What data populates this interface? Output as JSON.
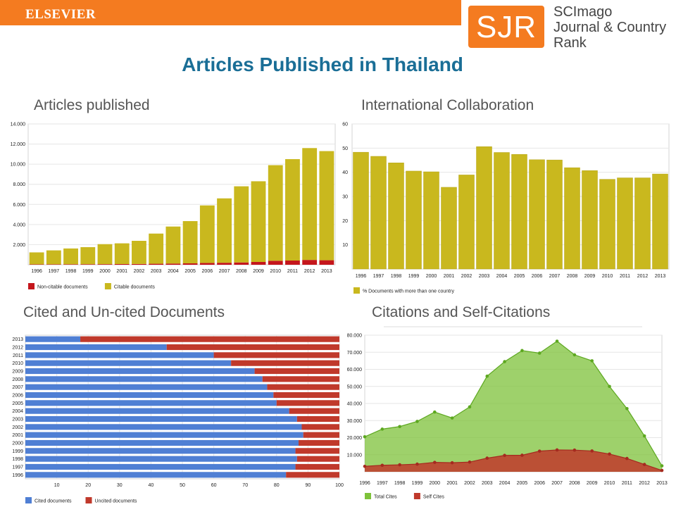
{
  "header": {
    "publisher": "ELSEVIER",
    "logo_letters": "SJR",
    "logo_line1": "SCImago",
    "logo_line2": "Journal & Country",
    "logo_line3": "Rank",
    "title": "Articles Published in Thailand",
    "brand_color": "#f47b20",
    "title_color": "#1a6e96"
  },
  "chart_data": [
    {
      "id": "articles",
      "type": "bar",
      "stacked": true,
      "title": "Articles published",
      "categories": [
        "1996",
        "1997",
        "1998",
        "1999",
        "2000",
        "2001",
        "2002",
        "2003",
        "2004",
        "2005",
        "2006",
        "2007",
        "2008",
        "2009",
        "2010",
        "2011",
        "2012",
        "2013"
      ],
      "series": [
        {
          "name": "Non-citable documents",
          "color": "#c4161c",
          "values": [
            40,
            45,
            50,
            55,
            60,
            70,
            80,
            100,
            120,
            140,
            180,
            200,
            230,
            280,
            400,
            420,
            480,
            450
          ]
        },
        {
          "name": "Citable documents",
          "color": "#c9b81e",
          "values": [
            1190,
            1385,
            1570,
            1695,
            1990,
            2060,
            2300,
            3000,
            3680,
            4200,
            5720,
            6400,
            7570,
            8020,
            9500,
            10080,
            11120,
            10850
          ]
        }
      ],
      "ylim": [
        0,
        14000
      ],
      "yticks": [
        "2.000",
        "4.000",
        "6.000",
        "8.000",
        "10.000",
        "12.000",
        "14.000"
      ],
      "ytick_values": [
        2000,
        4000,
        6000,
        8000,
        10000,
        12000,
        14000
      ],
      "grid": true,
      "legend": "bottom-left"
    },
    {
      "id": "collab",
      "type": "bar",
      "title": "International Collaboration",
      "categories": [
        "1996",
        "1997",
        "1998",
        "1999",
        "2000",
        "2001",
        "2002",
        "2003",
        "2004",
        "2005",
        "2006",
        "2007",
        "2008",
        "2009",
        "2010",
        "2011",
        "2012",
        "2013"
      ],
      "series": [
        {
          "name": "% Documents with more than one country",
          "color": "#c9b81e",
          "values": [
            48.3,
            46.6,
            43.9,
            40.5,
            40.2,
            33.8,
            38.9,
            50.6,
            48.2,
            47.4,
            45.2,
            45.1,
            41.9,
            40.7,
            37.1,
            37.7,
            37.7,
            39.3
          ]
        }
      ],
      "ylim": [
        0,
        60
      ],
      "yticks": [
        "10",
        "20",
        "30",
        "40",
        "50",
        "60"
      ],
      "ytick_values": [
        10,
        20,
        30,
        40,
        50,
        60
      ],
      "grid": true,
      "legend": "bottom-left"
    },
    {
      "id": "cited",
      "type": "bar",
      "orientation": "horizontal",
      "stacked": true,
      "title": "Cited and Un-cited Documents",
      "categories": [
        "2013",
        "2012",
        "2011",
        "2010",
        "2009",
        "2008",
        "2007",
        "2006",
        "2005",
        "2004",
        "2003",
        "2002",
        "2001",
        "2000",
        "1999",
        "1998",
        "1997",
        "1996"
      ],
      "series": [
        {
          "name": "Cited documents",
          "color": "#4f7fd4",
          "values": [
            17.5,
            45,
            60,
            65.5,
            73,
            75.5,
            77,
            79,
            80,
            84,
            86.5,
            88,
            88.5,
            87,
            86,
            86.5,
            86,
            83
          ]
        },
        {
          "name": "Uncited documents",
          "color": "#c0392b",
          "values": [
            82.5,
            55,
            40,
            34.5,
            27,
            24.5,
            23,
            21,
            20,
            16,
            13.5,
            12,
            11.5,
            13,
            14,
            13.5,
            14,
            17
          ]
        }
      ],
      "xlim": [
        0,
        100
      ],
      "xticks": [
        "10",
        "20",
        "30",
        "40",
        "50",
        "60",
        "70",
        "80",
        "90",
        "100"
      ],
      "xtick_values": [
        10,
        20,
        30,
        40,
        50,
        60,
        70,
        80,
        90,
        100
      ],
      "grid": true,
      "legend": "bottom-left"
    },
    {
      "id": "citations",
      "type": "area",
      "title": "Citations and Self-Citations",
      "categories": [
        "1996",
        "1997",
        "1998",
        "1999",
        "2000",
        "2001",
        "2002",
        "2003",
        "2004",
        "2005",
        "2006",
        "2007",
        "2008",
        "2009",
        "2010",
        "2011",
        "2012",
        "2013"
      ],
      "series": [
        {
          "name": "Total Cites",
          "color": "#7ec23a",
          "values": [
            20500,
            25000,
            26500,
            29500,
            35000,
            31500,
            38000,
            56000,
            64500,
            71000,
            69500,
            76500,
            68500,
            65000,
            50000,
            37000,
            21000,
            3500
          ]
        },
        {
          "name": "Self Cites",
          "color": "#c0392b",
          "values": [
            3200,
            3800,
            4100,
            4500,
            5500,
            5300,
            5700,
            8000,
            9600,
            9700,
            12100,
            12800,
            12700,
            12200,
            10400,
            7800,
            4300,
            800
          ]
        }
      ],
      "ylim": [
        0,
        80000
      ],
      "yticks": [
        "10.000",
        "20.000",
        "30.000",
        "40.000",
        "50.000",
        "60.000",
        "70.000",
        "80.000"
      ],
      "ytick_values": [
        10000,
        20000,
        30000,
        40000,
        50000,
        60000,
        70000,
        80000
      ],
      "grid": true,
      "legend": "bottom-left"
    }
  ]
}
